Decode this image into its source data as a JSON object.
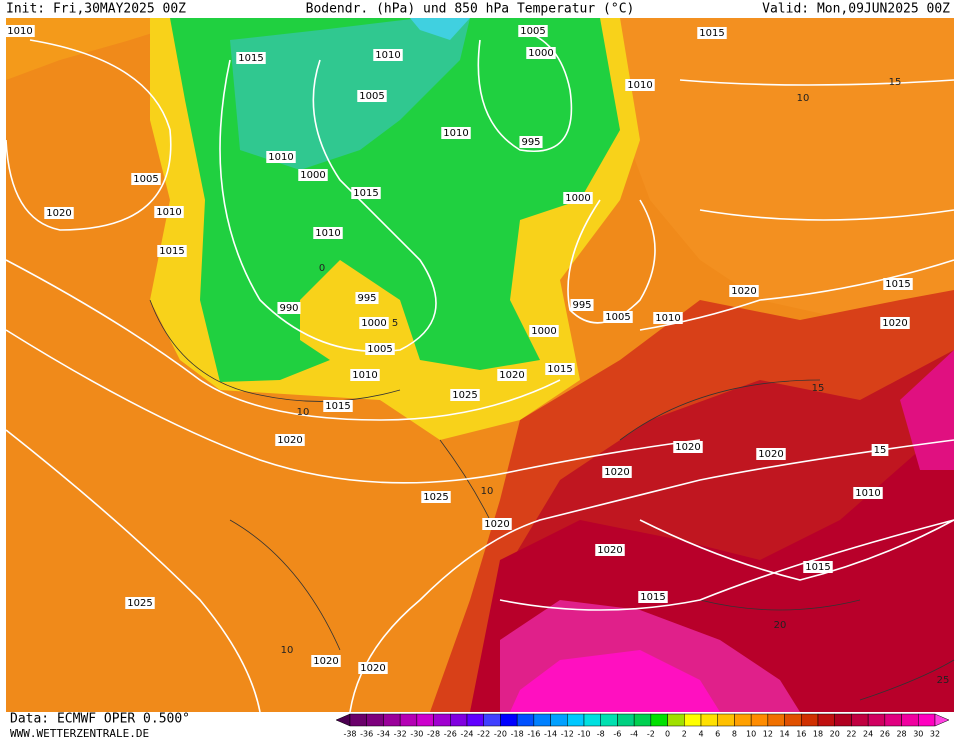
{
  "header": {
    "init": "Init: Fri,30MAY2025 00Z",
    "title": "Bodendr. (hPa) und 850 hPa Temperatur (°C)",
    "valid": "Valid: Mon,09JUN2025 00Z"
  },
  "footer": {
    "data_source": "Data: ECMWF OPER 0.500°",
    "website": "WWW.WETTERZENTRALE.DE"
  },
  "colorbar": {
    "ticks": [
      -38,
      -36,
      -34,
      -32,
      -30,
      -28,
      -26,
      -24,
      -22,
      -20,
      -18,
      -16,
      -14,
      -12,
      -10,
      -8,
      -6,
      -4,
      -2,
      0,
      2,
      4,
      6,
      8,
      10,
      12,
      14,
      16,
      18,
      20,
      22,
      24,
      26,
      28,
      30,
      32
    ],
    "colors": [
      "#4b0050",
      "#6a006a",
      "#7d007d",
      "#9a009a",
      "#b400b4",
      "#cc00cc",
      "#a000d0",
      "#8000e0",
      "#6000ff",
      "#4040ff",
      "#0000ff",
      "#0050ff",
      "#0080ff",
      "#00a0ff",
      "#00c8ff",
      "#00e0e0",
      "#00e0b0",
      "#00d080",
      "#00d050",
      "#00e000",
      "#a0e000",
      "#ffff00",
      "#ffe000",
      "#ffc000",
      "#ffa000",
      "#ff8c00",
      "#f07000",
      "#e05000",
      "#d03000",
      "#c01010",
      "#b00020",
      "#c00040",
      "#d00060",
      "#e00080",
      "#f000a0",
      "#ff00c0",
      "#ff40e0"
    ]
  },
  "isobar_labels": [
    "1015",
    "1015",
    "1005",
    "1000",
    "1010",
    "1010",
    "1010",
    "1005",
    "1010",
    "995",
    "1010",
    "1000",
    "1005",
    "1015",
    "1020",
    "1010",
    "1000",
    "1010",
    "1015",
    "995",
    "990",
    "1000",
    "995",
    "1005",
    "1010",
    "1020",
    "1015",
    "1020",
    "1000",
    "1005",
    "1010",
    "1020",
    "1015",
    "1025",
    "1015",
    "1020",
    "1020",
    "1020",
    "1020",
    "1010",
    "1025",
    "1020",
    "1020",
    "1015",
    "1015",
    "1025",
    "1020",
    "1020",
    "15"
  ],
  "temperature_labels": [
    "10",
    "10",
    "10",
    "20",
    "25",
    "15",
    "15",
    "0",
    "5",
    "10"
  ]
}
